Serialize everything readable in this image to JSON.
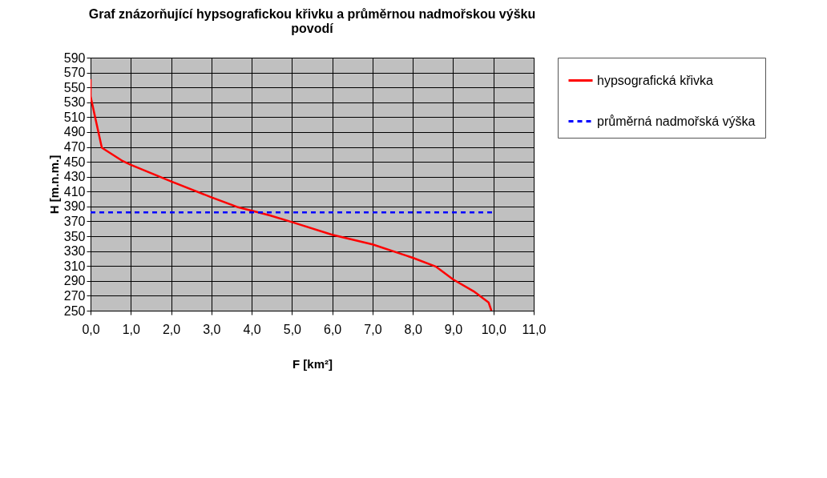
{
  "chart_data": {
    "type": "line",
    "title": "Graf znázorňující hypsografickou křivku a průměrnou nadmořskou výšku povodí",
    "xlabel": "F [km²]",
    "ylabel": "H [m.n.m.]",
    "xlim": [
      0,
      11
    ],
    "ylim": [
      250,
      590
    ],
    "xticks": [
      {
        "value": 0,
        "label": "0,0"
      },
      {
        "value": 1,
        "label": "1,0"
      },
      {
        "value": 2,
        "label": "2,0"
      },
      {
        "value": 3,
        "label": "3,0"
      },
      {
        "value": 4,
        "label": "4,0"
      },
      {
        "value": 5,
        "label": "5,0"
      },
      {
        "value": 6,
        "label": "6,0"
      },
      {
        "value": 7,
        "label": "7,0"
      },
      {
        "value": 8,
        "label": "8,0"
      },
      {
        "value": 9,
        "label": "9,0"
      },
      {
        "value": 10,
        "label": "10,0"
      },
      {
        "value": 11,
        "label": "11,0"
      }
    ],
    "yticks": [
      250,
      270,
      290,
      310,
      330,
      350,
      370,
      390,
      410,
      430,
      450,
      470,
      490,
      510,
      530,
      550,
      570,
      590
    ],
    "grid": true,
    "legend": "right",
    "marker": "none",
    "series": [
      {
        "name": "hypsografická křivka",
        "color": "#ff0000",
        "line_style": "solid",
        "x": [
          0,
          0,
          0.28,
          0.8,
          1.0,
          1.99,
          2.97,
          3.66,
          4.45,
          5.0,
          6.0,
          7.0,
          8.0,
          8.58,
          9.0,
          9.51,
          9.88,
          9.95
        ],
        "values": [
          561,
          538,
          469,
          451,
          446,
          424,
          403,
          389,
          378,
          369,
          352,
          339,
          321,
          309,
          292,
          276,
          261,
          250
        ]
      },
      {
        "name": "průměrná nadmořská výška",
        "color": "#0000ff",
        "line_style": "dashed",
        "x": [
          0,
          10
        ],
        "values": [
          382,
          382
        ]
      }
    ]
  }
}
